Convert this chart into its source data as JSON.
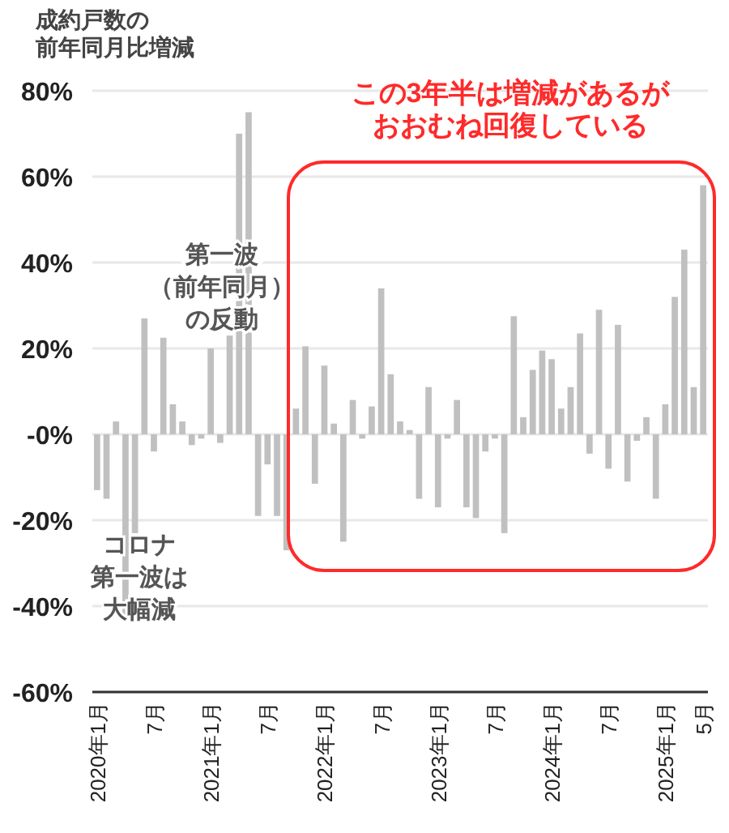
{
  "chart_data": {
    "type": "bar",
    "ylabel": "成約戸数の前年同月比増減",
    "categories": [
      "2020年1月",
      null,
      null,
      null,
      null,
      null,
      "7月",
      null,
      null,
      null,
      null,
      null,
      "2021年1月",
      null,
      null,
      null,
      null,
      null,
      "7月",
      null,
      null,
      null,
      null,
      null,
      "2022年1月",
      null,
      null,
      null,
      null,
      null,
      "7月",
      null,
      null,
      null,
      null,
      null,
      "2023年1月",
      null,
      null,
      null,
      null,
      null,
      "7月",
      null,
      null,
      null,
      null,
      null,
      "2024年1月",
      null,
      null,
      null,
      null,
      null,
      "7月",
      null,
      null,
      null,
      null,
      null,
      "2025年1月",
      null,
      null,
      null,
      "5月"
    ],
    "values": [
      -13,
      -15,
      3,
      -42,
      -23,
      27,
      -4,
      22.5,
      7,
      3,
      -2.5,
      -1,
      20,
      -2,
      23,
      70,
      75,
      -19,
      -7,
      -19,
      -27,
      6,
      20.5,
      -11.5,
      16,
      2.5,
      -25,
      8,
      -1,
      6.5,
      34,
      14,
      3,
      1,
      -15,
      11,
      -17,
      -1,
      8,
      -17,
      -19.5,
      -4,
      -1,
      -23,
      27.5,
      4,
      15,
      19.5,
      17.5,
      6,
      11,
      23.5,
      -4.5,
      29,
      -8,
      25.5,
      -11,
      -1.5,
      4,
      -15,
      7,
      32,
      43,
      11,
      58
    ],
    "color": "#c0c0c0",
    "ylim": [
      -60,
      80
    ],
    "yticks": [
      {
        "value": -60,
        "label": "-60%"
      },
      {
        "value": -40,
        "label": "-40%"
      },
      {
        "value": -20,
        "label": "-20%"
      },
      {
        "value": 0,
        "label": "-0%"
      },
      {
        "value": 20,
        "label": "20%"
      },
      {
        "value": 40,
        "label": "40%"
      },
      {
        "value": 60,
        "label": "60%"
      },
      {
        "value": 80,
        "label": "80%"
      }
    ],
    "grid": "y",
    "annotations": [
      "この3年半は増減があるがおおむね回復している",
      "第一波（前年同月）の反動",
      "コロナ第一波は大幅減"
    ]
  }
}
